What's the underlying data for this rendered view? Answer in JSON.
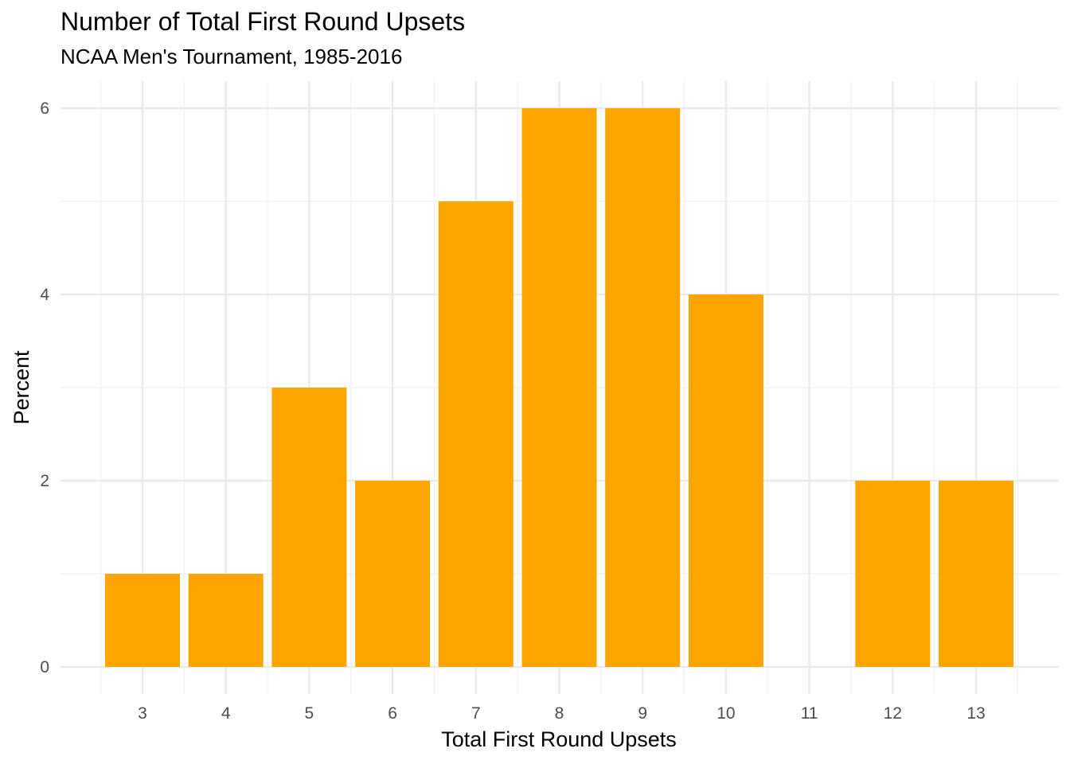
{
  "chart_data": {
    "type": "bar",
    "title": "Number of Total First Round Upsets",
    "subtitle": "NCAA Men's Tournament, 1985-2016",
    "xlabel": "Total First Round Upsets",
    "ylabel": "Percent",
    "categories": [
      "3",
      "4",
      "5",
      "6",
      "7",
      "8",
      "9",
      "10",
      "11",
      "12",
      "13"
    ],
    "values": [
      1,
      1,
      3,
      2,
      5,
      6,
      6,
      4,
      0,
      2,
      2
    ],
    "y_ticks": [
      "0",
      "2",
      "4",
      "6"
    ],
    "ylim": [
      -0.3,
      6.3
    ],
    "bar_color": "#FFA500",
    "grid": true,
    "legend": "none"
  }
}
